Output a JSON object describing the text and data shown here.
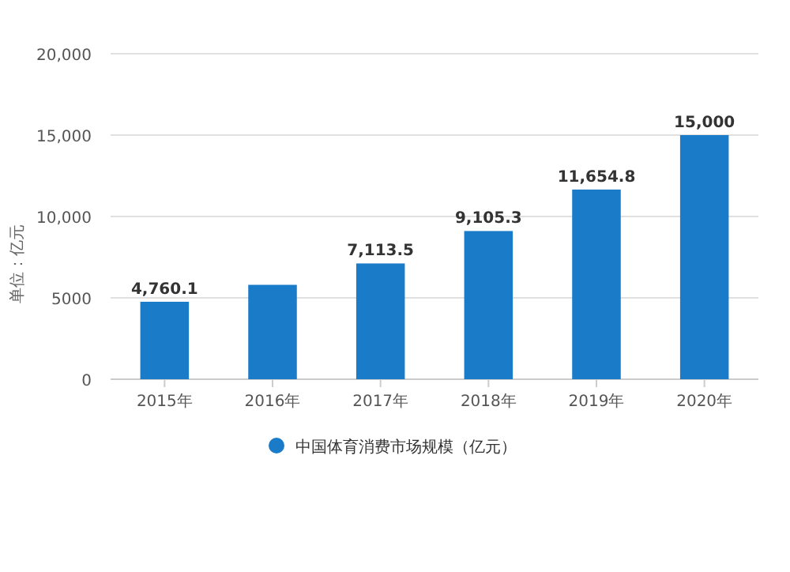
{
  "chart_data": {
    "type": "bar",
    "ylabel": "单位：亿元",
    "categories": [
      "2015年",
      "2016年",
      "2017年",
      "2018年",
      "2019年",
      "2020年"
    ],
    "series": [
      {
        "name": "中国体育消费市场规模（亿元）",
        "color": "#1a7bc9",
        "values": [
          4760.1,
          5800,
          7113.5,
          9105.3,
          11654.8,
          15000
        ],
        "value_labels": [
          "4,760.1",
          null,
          "7,113.5",
          "9,105.3",
          "11,654.8",
          "15,000"
        ]
      }
    ],
    "ylim": [
      0,
      20000
    ],
    "yticks": [
      0,
      {
        "value": 5000,
        "label": "5000"
      },
      {
        "value": 10000,
        "label": "10,000"
      },
      {
        "value": 15000,
        "label": "15,000"
      },
      {
        "value": 20000,
        "label": "20,000"
      }
    ],
    "grid": "y",
    "legend": "bottom"
  }
}
